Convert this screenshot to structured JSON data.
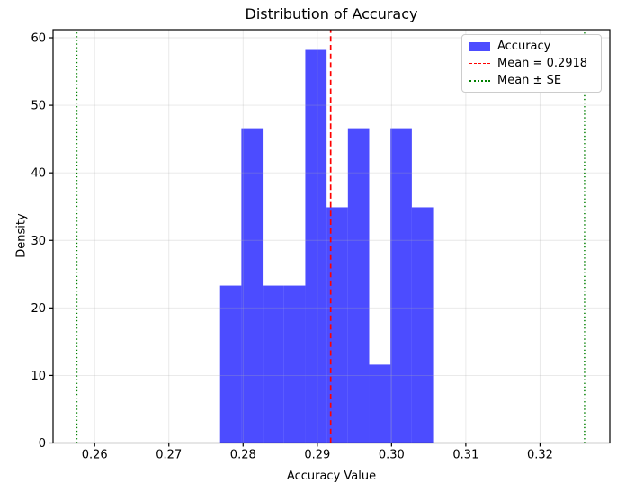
{
  "chart_data": {
    "type": "bar",
    "subtype": "histogram-density",
    "title": "Distribution of Accuracy",
    "xlabel": "Accuracy Value",
    "ylabel": "Density",
    "xlim": [
      0.2544,
      0.3294
    ],
    "ylim": [
      0,
      61.2
    ],
    "xticks": [
      0.26,
      0.27,
      0.28,
      0.29,
      0.3,
      0.31,
      0.32
    ],
    "xtick_labels": [
      "0.26",
      "0.27",
      "0.28",
      "0.29",
      "0.30",
      "0.31",
      "0.32"
    ],
    "yticks": [
      0,
      10,
      20,
      30,
      40,
      50,
      60
    ],
    "ytick_labels": [
      "0",
      "10",
      "20",
      "30",
      "40",
      "50",
      "60"
    ],
    "grid": true,
    "grid_color": "#b0b0b0",
    "grid_alpha": 0.3,
    "bar_color": "#0000ff",
    "bar_alpha": 0.7,
    "bin_edges": [
      0.2769,
      0.27977,
      0.28264,
      0.28551,
      0.28838,
      0.29125,
      0.29412,
      0.29699,
      0.29986,
      0.30273,
      0.3056
    ],
    "densities": [
      23.3,
      46.6,
      23.3,
      23.3,
      58.2,
      34.9,
      46.6,
      11.6,
      46.6,
      34.9
    ],
    "mean_line": {
      "value": 0.2918,
      "color": "#ff0000",
      "style": "dashed",
      "label": "Mean = 0.2918"
    },
    "se_lines": {
      "values": [
        0.2576,
        0.326
      ],
      "se": 0.0342,
      "color": "#008000",
      "style": "dotted",
      "label": "Mean ± SE"
    },
    "legend": {
      "position": "upper right",
      "entries": [
        {
          "label": "Accuracy",
          "swatch": "patch",
          "color": "#0000ff"
        },
        {
          "label": "Mean = 0.2918",
          "swatch": "dashed-line",
          "color": "#ff0000"
        },
        {
          "label": "Mean ± SE",
          "swatch": "dotted-line",
          "color": "#008000"
        }
      ]
    }
  }
}
